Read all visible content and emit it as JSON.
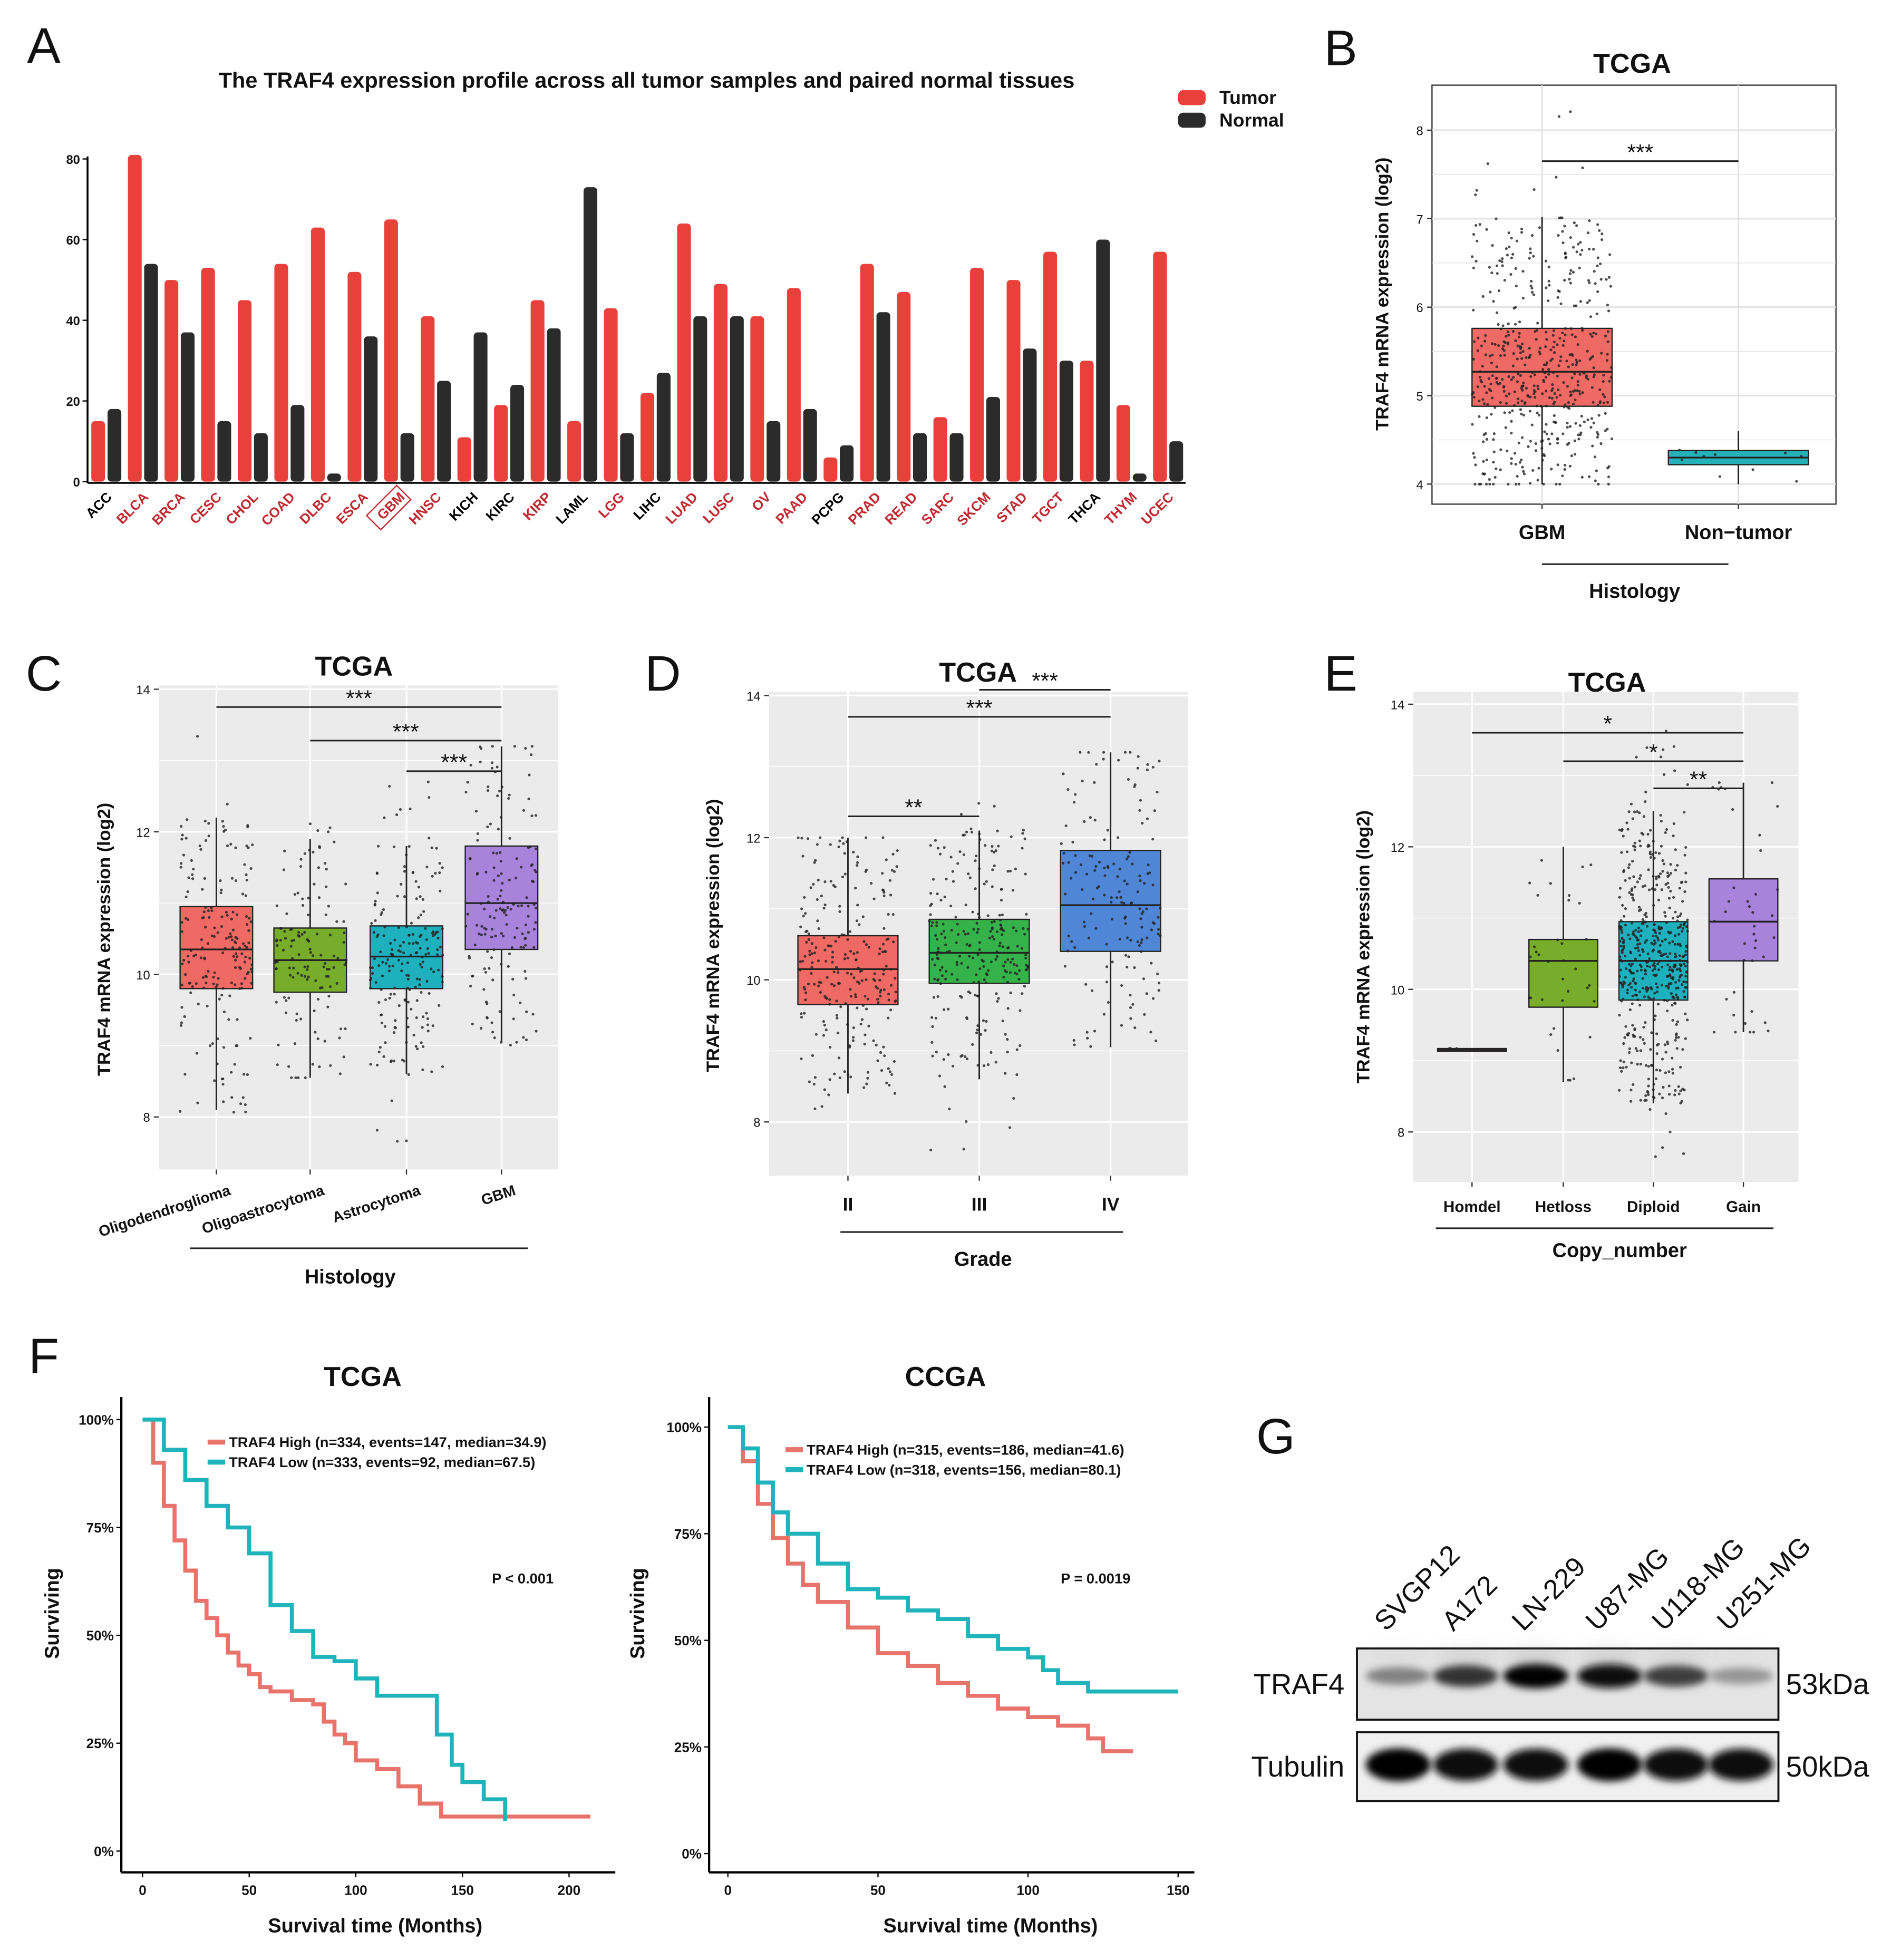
{
  "chart_data": [
    {
      "letter": "A",
      "type": "bar",
      "title": "The TRAF4 expression profile across all tumor samples and paired normal tissues",
      "categories": [
        "ACC",
        "BLCA",
        "BRCA",
        "CESC",
        "CHOL",
        "COAD",
        "DLBC",
        "ESCA",
        "GBM",
        "HNSC",
        "KICH",
        "KIRC",
        "KIRP",
        "LAML",
        "LGG",
        "LIHC",
        "LUAD",
        "LUSC",
        "OV",
        "PAAD",
        "PCPG",
        "PRAD",
        "READ",
        "SARC",
        "SKCM",
        "STAD",
        "TGCT",
        "THCA",
        "THYM",
        "UCEC"
      ],
      "category_colors": [
        "#000000",
        "#c0272d",
        "#c0272d",
        "#c0272d",
        "#c0272d",
        "#c0272d",
        "#c0272d",
        "#c0272d",
        "#c0272d",
        "#c0272d",
        "#000000",
        "#000000",
        "#c0272d",
        "#000000",
        "#c0272d",
        "#000000",
        "#c0272d",
        "#c0272d",
        "#c0272d",
        "#c0272d",
        "#000000",
        "#c0272d",
        "#c0272d",
        "#c0272d",
        "#c0272d",
        "#c0272d",
        "#c0272d",
        "#000000",
        "#c0272d",
        "#c0272d"
      ],
      "highlighted_category": "GBM",
      "series": [
        {
          "name": "Tumor",
          "color": "#e8413c",
          "values": [
            15,
            81,
            50,
            53,
            45,
            54,
            63,
            52,
            65,
            41,
            11,
            19,
            45,
            15,
            43,
            22,
            64,
            49,
            41,
            48,
            6,
            54,
            47,
            16,
            53,
            50,
            57,
            30,
            19,
            57
          ]
        },
        {
          "name": "Normal",
          "color": "#2b2b2b",
          "values": [
            18,
            54,
            37,
            15,
            12,
            19,
            2,
            36,
            12,
            25,
            37,
            24,
            38,
            73,
            12,
            27,
            41,
            41,
            15,
            18,
            9,
            42,
            12,
            12,
            21,
            33,
            30,
            60,
            2,
            10
          ]
        }
      ],
      "yticks": [
        0,
        20,
        40,
        60,
        80
      ],
      "ylim": [
        0,
        80
      ],
      "legend": "top-right"
    },
    {
      "letter": "B",
      "type": "box",
      "title": "TCGA",
      "ylabel": "TRAF4 mRNA expression (log2)",
      "xlabel": "Histology",
      "yticks": [
        4,
        5,
        6,
        7,
        8
      ],
      "grid": true,
      "groups": [
        {
          "name": "GBM",
          "color": "#ef6a64",
          "q1": 4.88,
          "median": 5.27,
          "q3": 5.76,
          "whisker_low": 4.0,
          "whisker_high": 7.02,
          "min": 4.0,
          "max": 8.3,
          "n": 520
        },
        {
          "name": "Non−tumor",
          "color": "#22b2b8",
          "q1": 4.22,
          "median": 4.3,
          "q3": 4.38,
          "whisker_low": 4.0,
          "whisker_high": 4.6,
          "min": 4.0,
          "max": 4.75,
          "n": 10
        }
      ],
      "significance": [
        {
          "from": 0,
          "to": 1,
          "y": 7.65,
          "label": "***"
        }
      ]
    },
    {
      "letter": "C",
      "type": "box",
      "title": "TCGA",
      "ylabel": "TRAF4 mRNA expression (log2)",
      "xlabel": "Histology",
      "yticks": [
        8,
        10,
        12,
        14
      ],
      "grid": true,
      "groups": [
        {
          "name": "Oligodendroglioma",
          "color": "#ef6a64",
          "q1": 9.8,
          "median": 10.35,
          "q3": 10.95,
          "whisker_low": 8.1,
          "whisker_high": 12.2,
          "min": 8.05,
          "max": 13.8,
          "n": 190
        },
        {
          "name": "Oligoastrocytoma",
          "color": "#77ad2a",
          "q1": 9.75,
          "median": 10.2,
          "q3": 10.65,
          "whisker_low": 8.55,
          "whisker_high": 11.9,
          "min": 8.55,
          "max": 12.2,
          "n": 130
        },
        {
          "name": "Astrocytoma",
          "color": "#1fb0bd",
          "q1": 9.8,
          "median": 10.25,
          "q3": 10.68,
          "whisker_low": 8.6,
          "whisker_high": 11.8,
          "min": 7.6,
          "max": 12.8,
          "n": 195
        },
        {
          "name": "GBM",
          "color": "#a982dc",
          "q1": 10.35,
          "median": 11.0,
          "q3": 11.8,
          "whisker_low": 9.05,
          "whisker_high": 13.2,
          "min": 9.0,
          "max": 13.2,
          "n": 160
        }
      ],
      "significance": [
        {
          "from": 0,
          "to": 3,
          "y": 13.75,
          "label": "***"
        },
        {
          "from": 1,
          "to": 3,
          "y": 13.28,
          "label": "***"
        },
        {
          "from": 2,
          "to": 3,
          "y": 12.85,
          "label": "***"
        }
      ]
    },
    {
      "letter": "D",
      "type": "box",
      "title": "TCGA",
      "ylabel": "TRAF4 mRNA expression (log2)",
      "xlabel": "Grade",
      "yticks": [
        8,
        10,
        12,
        14
      ],
      "grid": true,
      "groups": [
        {
          "name": "II",
          "color": "#ef6a64",
          "q1": 9.65,
          "median": 10.15,
          "q3": 10.62,
          "whisker_low": 8.4,
          "whisker_high": 12.0,
          "min": 8.05,
          "max": 12.0,
          "n": 250
        },
        {
          "name": "III",
          "color": "#35b34a",
          "q1": 9.95,
          "median": 10.38,
          "q3": 10.85,
          "whisker_low": 8.6,
          "whisker_high": 12.1,
          "min": 7.6,
          "max": 12.5,
          "n": 260
        },
        {
          "name": "IV",
          "color": "#4f86d6",
          "q1": 10.4,
          "median": 11.05,
          "q3": 11.82,
          "whisker_low": 9.05,
          "whisker_high": 13.2,
          "min": 9.0,
          "max": 13.2,
          "n": 160
        }
      ],
      "significance": [
        {
          "from": 0,
          "to": 1,
          "y": 12.3,
          "label": "**"
        },
        {
          "from": 0,
          "to": 2,
          "y": 13.7,
          "label": "***"
        },
        {
          "from": 1,
          "to": 2,
          "y": 14.08,
          "label": "***"
        }
      ]
    },
    {
      "letter": "E",
      "type": "box",
      "title": "TCGA",
      "ylabel": "TRAF4 mRNA expression (log2)",
      "xlabel": "Copy_number",
      "yticks": [
        8,
        10,
        12,
        14
      ],
      "grid": true,
      "groups": [
        {
          "name": "Homdel",
          "color": "#ef6a64",
          "q1": 9.13,
          "median": 9.15,
          "q3": 9.17,
          "whisker_low": 9.13,
          "whisker_high": 9.17,
          "min": 9.1,
          "max": 9.2,
          "n": 3
        },
        {
          "name": "Hetloss",
          "color": "#77ad2a",
          "q1": 9.75,
          "median": 10.4,
          "q3": 10.7,
          "whisker_low": 8.7,
          "whisker_high": 12.0,
          "min": 8.7,
          "max": 12.0,
          "n": 35
        },
        {
          "name": "Diploid",
          "color": "#1fb0bd",
          "q1": 9.85,
          "median": 10.4,
          "q3": 10.95,
          "whisker_low": 8.4,
          "whisker_high": 12.5,
          "min": 7.6,
          "max": 13.7,
          "n": 520
        },
        {
          "name": "Gain",
          "color": "#a982dc",
          "q1": 10.4,
          "median": 10.95,
          "q3": 11.55,
          "whisker_low": 9.4,
          "whisker_high": 12.9,
          "min": 9.4,
          "max": 12.9,
          "n": 40
        }
      ],
      "significance": [
        {
          "from": 0,
          "to": 3,
          "y": 13.6,
          "label": "*"
        },
        {
          "from": 1,
          "to": 3,
          "y": 13.2,
          "label": "*"
        },
        {
          "from": 2,
          "to": 3,
          "y": 12.82,
          "label": "**"
        }
      ]
    },
    {
      "letter": "F",
      "type": "line",
      "subtype": "kaplan-meier",
      "title": "TCGA",
      "xlabel": "Survival time (Months)",
      "ylabel": "Surviving",
      "xticks": [
        0,
        50,
        100,
        150,
        200
      ],
      "yticks": [
        "0%",
        "25%",
        "50%",
        "75%",
        "100%"
      ],
      "xlim": [
        0,
        210
      ],
      "ylim": [
        0,
        100
      ],
      "pvalue": "P < 0.001",
      "series": [
        {
          "name": "TRAF4 High (n=334, events=147, median=34.9)",
          "color": "#e8736b",
          "x": [
            0,
            5,
            10,
            15,
            20,
            25,
            30,
            35,
            40,
            45,
            50,
            55,
            60,
            70,
            80,
            85,
            90,
            95,
            100,
            110,
            120,
            130,
            140,
            150,
            210
          ],
          "y": [
            100,
            90,
            80,
            72,
            65,
            58,
            54,
            50,
            46,
            43,
            41,
            38,
            37,
            35,
            34,
            30,
            27,
            25,
            21,
            19,
            15,
            11,
            8,
            8,
            8
          ]
        },
        {
          "name": "TRAF4 Low (n=333, events=92, median=67.5)",
          "color": "#1fb3bb",
          "x": [
            0,
            10,
            20,
            30,
            40,
            50,
            60,
            70,
            80,
            90,
            100,
            110,
            125,
            135,
            138,
            145,
            150,
            160,
            170
          ],
          "y": [
            100,
            93,
            86,
            80,
            75,
            69,
            57,
            51,
            45,
            44,
            40,
            36,
            36,
            36,
            27,
            20,
            16,
            12,
            7
          ]
        }
      ]
    },
    {
      "letter": "",
      "type": "line",
      "subtype": "kaplan-meier",
      "title": "CCGA",
      "xlabel": "Survival time (Months)",
      "ylabel": "Surviving",
      "xticks": [
        0,
        50,
        100,
        150
      ],
      "yticks": [
        "0%",
        "25%",
        "50%",
        "75%",
        "100%"
      ],
      "xlim": [
        0,
        150
      ],
      "ylim": [
        0,
        100
      ],
      "pvalue": "P = 0.0019",
      "series": [
        {
          "name": "TRAF4 High (n=315, events=186, median=41.6)",
          "color": "#e8736b",
          "x": [
            0,
            5,
            10,
            15,
            20,
            25,
            30,
            40,
            50,
            60,
            70,
            80,
            90,
            100,
            110,
            120,
            125,
            135
          ],
          "y": [
            100,
            92,
            82,
            74,
            68,
            63,
            59,
            53,
            47,
            44,
            40,
            37,
            34,
            32,
            30,
            27,
            24,
            24
          ]
        },
        {
          "name": "TRAF4 Low (n=318, events=156, median=80.1)",
          "color": "#1fb3bb",
          "x": [
            0,
            5,
            10,
            15,
            20,
            30,
            40,
            50,
            60,
            70,
            80,
            90,
            100,
            105,
            110,
            120,
            150
          ],
          "y": [
            100,
            95,
            87,
            80,
            75,
            68,
            62,
            60,
            57,
            55,
            51,
            48,
            46,
            43,
            40,
            38,
            38
          ]
        }
      ]
    },
    {
      "letter": "G",
      "type": "blot",
      "lanes": [
        "SVGP12",
        "A172",
        "LN-229",
        "U87-MG",
        "U118-MG",
        "U251-MG"
      ],
      "rows": [
        {
          "name": "TRAF4",
          "size": "53kDa",
          "intensity": [
            0.35,
            0.75,
            1.0,
            0.95,
            0.7,
            0.25
          ]
        },
        {
          "name": "Tubulin",
          "size": "50kDa",
          "intensity": [
            1.0,
            0.95,
            0.95,
            1.0,
            0.95,
            0.95
          ]
        }
      ]
    }
  ]
}
